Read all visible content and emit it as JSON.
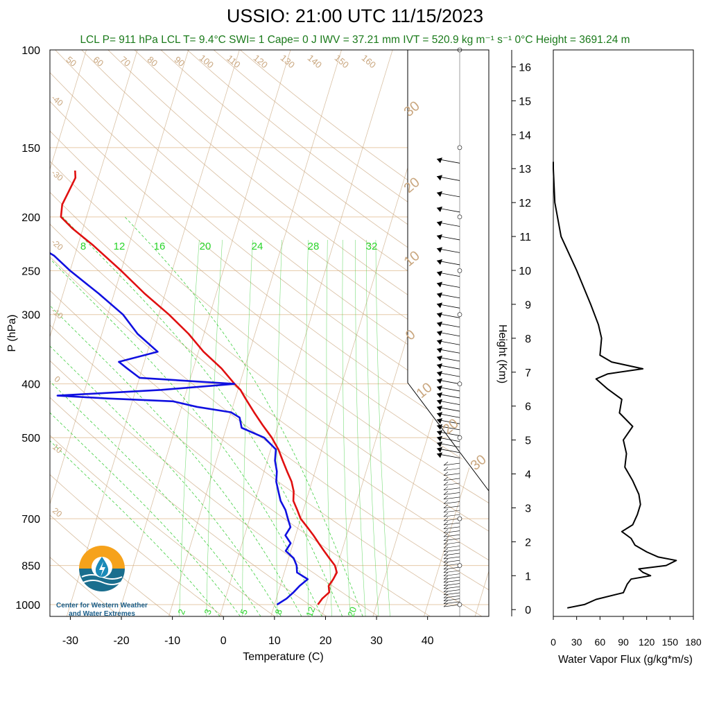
{
  "title": "USSIO: 21:00 UTC 11/15/2023",
  "subtitle": "LCL P= 911 hPa  LCL T= 9.4°C  SWI= 1  Cape= 0 J  IWV = 37.21 mm  IVT = 520.9 kg m⁻¹ s⁻¹  0°C Height = 3691.24 m",
  "logo": {
    "line1": "Center for Western Weather",
    "line2": "and Water Extremes"
  },
  "colors": {
    "temperature": "#e01010",
    "dewpoint": "#1010e0",
    "dry_adiabat": "#c9a67e",
    "moist_adiabat": "#3ecf3e",
    "mixing_ratio": "#3ecf3e",
    "isobar": "#e6c9a8",
    "flux": "#000000"
  },
  "chart_data": [
    {
      "type": "line",
      "name": "skewt",
      "xlabel": "Temperature (C)",
      "ylabel": "P (hPa)",
      "xlim": [
        -34,
        52
      ],
      "ylim": [
        1050,
        100
      ],
      "y_scale": "log",
      "x_ticks": [
        -30,
        -20,
        -10,
        0,
        10,
        20,
        30,
        40
      ],
      "p_ticks": [
        100,
        150,
        200,
        250,
        300,
        400,
        500,
        700,
        850,
        1000
      ],
      "isotherm_labels": [
        "-40",
        "-30",
        "-20",
        "-10",
        "0",
        "10",
        "20",
        "30"
      ],
      "dry_adiabat_labels": [
        "50",
        "60",
        "70",
        "80",
        "90",
        "100",
        "110",
        "120",
        "130",
        "140",
        "150",
        "160"
      ],
      "mixing_ratio_top_labels": [
        "8",
        "12",
        "16",
        "20",
        "24",
        "28",
        "32"
      ],
      "mixing_ratio_bottom_labels": [
        "2",
        "3",
        "5",
        "8",
        "12",
        "20"
      ],
      "side_labels": [
        "30",
        "20",
        "10",
        "0",
        "10",
        "20",
        "30"
      ],
      "series": [
        {
          "name": "temperature",
          "p": [
            1000,
            975,
            950,
            925,
            900,
            875,
            850,
            825,
            800,
            775,
            750,
            725,
            700,
            675,
            650,
            625,
            600,
            575,
            550,
            525,
            500,
            475,
            450,
            425,
            410,
            400,
            375,
            350,
            325,
            300,
            275,
            250,
            225,
            210,
            200,
            190,
            180,
            170,
            165
          ],
          "t": [
            18.5,
            19,
            20,
            19.5,
            20,
            20.3,
            19.5,
            18,
            16.5,
            15,
            13.5,
            11.8,
            10,
            8.8,
            7.5,
            7,
            6,
            4.5,
            3,
            1.5,
            -0.5,
            -3,
            -5.5,
            -8,
            -9.5,
            -11,
            -14.5,
            -19,
            -23,
            -28,
            -34,
            -40,
            -47,
            -52,
            -55,
            -55.5,
            -55,
            -54.5,
            -55
          ]
        },
        {
          "name": "dewpoint",
          "p": [
            1000,
            975,
            950,
            925,
            900,
            875,
            850,
            825,
            800,
            775,
            750,
            725,
            700,
            675,
            650,
            625,
            600,
            575,
            550,
            525,
            500,
            480,
            460,
            450,
            440,
            430,
            425,
            420,
            410,
            400,
            390,
            375,
            365,
            350,
            325,
            300,
            275,
            250,
            235,
            225,
            215,
            205,
            200,
            190,
            180,
            170,
            165
          ],
          "t": [
            10.5,
            12,
            13,
            13.8,
            15,
            12.5,
            12,
            11,
            9,
            9.5,
            8,
            8.5,
            7.5,
            6.5,
            5,
            4,
            3,
            2.5,
            1.5,
            1,
            -2,
            -7,
            -8,
            -10,
            -17,
            -22,
            -35,
            -45,
            -25,
            -11,
            -30,
            -33,
            -35,
            -28,
            -33,
            -37,
            -43,
            -50,
            -54,
            -58,
            -58,
            -62,
            -60,
            -75,
            -76,
            -74,
            -75
          ]
        }
      ],
      "wind_barbs_note": "per-level wind barbs along right edge"
    },
    {
      "type": "line",
      "name": "water-vapor-flux",
      "xlabel": "Water Vapor Flux (g/kg*m/s)",
      "ylabel": "Height (Km)",
      "xlim": [
        0,
        180
      ],
      "ylim": [
        -0.2,
        16.5
      ],
      "x_ticks": [
        0,
        30,
        60,
        90,
        120,
        150,
        180
      ],
      "y_ticks": [
        0,
        1,
        2,
        3,
        4,
        5,
        6,
        7,
        8,
        9,
        10,
        11,
        12,
        13,
        14,
        15,
        16
      ],
      "series": [
        {
          "name": "flux",
          "height": [
            0.05,
            0.15,
            0.3,
            0.5,
            0.75,
            0.9,
            1.0,
            1.1,
            1.2,
            1.3,
            1.45,
            1.55,
            1.7,
            1.9,
            2.1,
            2.3,
            2.5,
            2.8,
            3.1,
            3.4,
            3.8,
            4.2,
            4.6,
            5.0,
            5.4,
            5.8,
            6.2,
            6.5,
            6.8,
            6.95,
            7.1,
            7.3,
            7.5,
            8.0,
            8.4,
            9.0,
            10.0,
            11.0,
            12.0,
            13.0,
            13.2
          ],
          "flux": [
            18,
            40,
            55,
            90,
            95,
            100,
            125,
            115,
            110,
            145,
            158,
            135,
            120,
            105,
            100,
            88,
            102,
            108,
            112,
            110,
            102,
            92,
            94,
            90,
            102,
            85,
            88,
            70,
            55,
            70,
            115,
            75,
            60,
            62,
            58,
            48,
            30,
            10,
            2,
            0,
            0
          ]
        }
      ]
    }
  ]
}
